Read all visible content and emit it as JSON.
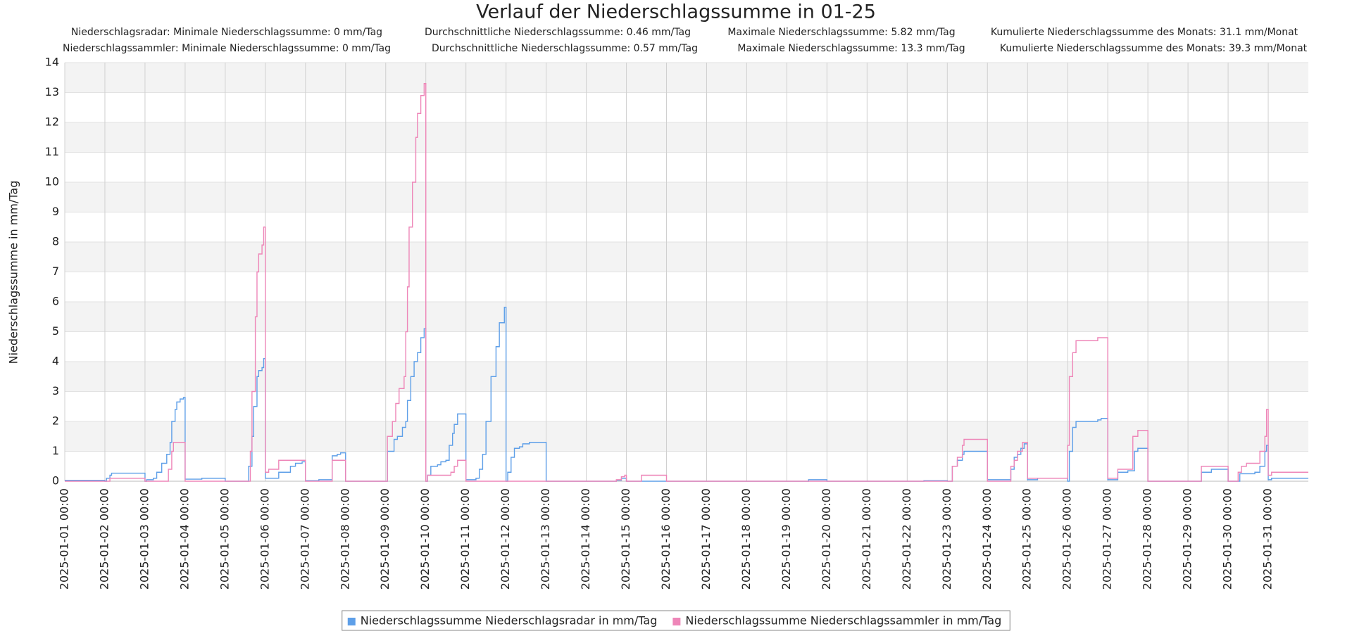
{
  "chart_data": {
    "type": "line",
    "title": "Verlauf der Niederschlagssumme in 01-25",
    "annotations": [
      "Niederschlagsradar: Minimale Niederschlagssumme: 0 mm/Tag",
      "Durchschnittliche Niederschlagssumme: 0.46 mm/Tag",
      "Maximale Niederschlagssumme: 5.82 mm/Tag",
      "Kumulierte Niederschlagssumme des Monats: 31.1 mm/Monat",
      "Niederschlagssammler: Minimale Niederschlagssumme: 0 mm/Tag",
      "Durchschnittliche Niederschlagssumme: 0.57 mm/Tag",
      "Maximale Niederschlagssumme: 13.3 mm/Tag",
      "Kumulierte Niederschlagssumme des Monats: 39.3 mm/Monat"
    ],
    "y_label": "Niederschlagssumme in mm/Tag",
    "ylim": [
      0,
      14
    ],
    "yticks": [
      0,
      1,
      2,
      3,
      4,
      5,
      6,
      7,
      8,
      9,
      10,
      11,
      12,
      13,
      14
    ],
    "xlim": [
      "2025-01-01 00:00",
      "2025-02-01 00:00"
    ],
    "xticks": [
      "2025-01-01 00:00",
      "2025-01-02 00:00",
      "2025-01-03 00:00",
      "2025-01-04 00:00",
      "2025-01-05 00:00",
      "2025-01-06 00:00",
      "2025-01-07 00:00",
      "2025-01-08 00:00",
      "2025-01-09 00:00",
      "2025-01-10 00:00",
      "2025-01-11 00:00",
      "2025-01-12 00:00",
      "2025-01-13 00:00",
      "2025-01-14 00:00",
      "2025-01-15 00:00",
      "2025-01-16 00:00",
      "2025-01-17 00:00",
      "2025-01-18 00:00",
      "2025-01-19 00:00",
      "2025-01-20 00:00",
      "2025-01-21 00:00",
      "2025-01-22 00:00",
      "2025-01-23 00:00",
      "2025-01-24 00:00",
      "2025-01-25 00:00",
      "2025-01-26 00:00",
      "2025-01-27 00:00",
      "2025-01-28 00:00",
      "2025-01-29 00:00",
      "2025-01-30 00:00",
      "2025-01-31 00:00"
    ],
    "grid": true,
    "band_color": "#f3f3f3",
    "step": "post",
    "legend": "bottom",
    "series": [
      {
        "name": "Niederschlagssumme Niederschlagsradar in mm/Tag",
        "color": "#5e9fe8",
        "x": [
          "2025-01-01 00:00",
          "2025-01-02 00:00",
          "2025-01-02 01:00",
          "2025-01-02 03:00",
          "2025-01-02 04:00",
          "2025-01-03 00:00",
          "2025-01-03 01:00",
          "2025-01-03 05:00",
          "2025-01-03 07:00",
          "2025-01-03 10:00",
          "2025-01-03 13:00",
          "2025-01-03 15:00",
          "2025-01-03 16:00",
          "2025-01-03 18:00",
          "2025-01-03 19:00",
          "2025-01-03 21:00",
          "2025-01-03 23:00",
          "2025-01-04 00:00",
          "2025-01-04 10:00",
          "2025-01-05 00:00",
          "2025-01-05 14:00",
          "2025-01-05 16:00",
          "2025-01-05 17:00",
          "2025-01-05 19:00",
          "2025-01-05 20:00",
          "2025-01-05 22:00",
          "2025-01-05 23:00",
          "2025-01-06 00:00",
          "2025-01-06 08:00",
          "2025-01-06 15:00",
          "2025-01-06 18:00",
          "2025-01-06 22:00",
          "2025-01-07 00:00",
          "2025-01-07 08:00",
          "2025-01-07 16:00",
          "2025-01-07 19:00",
          "2025-01-07 21:00",
          "2025-01-08 00:00",
          "2025-01-09 01:00",
          "2025-01-09 05:00",
          "2025-01-09 07:00",
          "2025-01-09 10:00",
          "2025-01-09 12:00",
          "2025-01-09 13:00",
          "2025-01-09 15:00",
          "2025-01-09 17:00",
          "2025-01-09 19:00",
          "2025-01-09 21:00",
          "2025-01-09 23:00",
          "2025-01-10 00:00",
          "2025-01-10 01:00",
          "2025-01-10 03:00",
          "2025-01-10 07:00",
          "2025-01-10 09:00",
          "2025-01-10 12:00",
          "2025-01-10 14:00",
          "2025-01-10 16:00",
          "2025-01-10 17:00",
          "2025-01-10 19:00",
          "2025-01-11 00:00",
          "2025-01-11 06:00",
          "2025-01-11 08:00",
          "2025-01-11 10:00",
          "2025-01-11 12:00",
          "2025-01-11 15:00",
          "2025-01-11 18:00",
          "2025-01-11 20:00",
          "2025-01-11 23:00",
          "2025-01-12 00:00",
          "2025-01-12 01:00",
          "2025-01-12 03:00",
          "2025-01-12 05:00",
          "2025-01-12 08:00",
          "2025-01-12 10:00",
          "2025-01-12 14:00",
          "2025-01-13 00:00",
          "2025-01-14 18:00",
          "2025-01-14 21:00",
          "2025-01-15 00:00",
          "2025-01-19 13:00",
          "2025-01-20 00:00",
          "2025-01-22 10:00",
          "2025-01-23 00:00",
          "2025-01-23 03:00",
          "2025-01-23 06:00",
          "2025-01-23 09:00",
          "2025-01-23 10:00",
          "2025-01-24 00:00",
          "2025-01-24 14:00",
          "2025-01-24 16:00",
          "2025-01-24 18:00",
          "2025-01-24 20:00",
          "2025-01-24 22:00",
          "2025-01-25 00:00",
          "2025-01-25 06:00",
          "2025-01-26 00:00",
          "2025-01-26 01:00",
          "2025-01-26 03:00",
          "2025-01-26 05:00",
          "2025-01-26 18:00",
          "2025-01-26 20:00",
          "2025-01-27 00:00",
          "2025-01-27 06:00",
          "2025-01-27 12:00",
          "2025-01-27 16:00",
          "2025-01-27 18:00",
          "2025-01-28 00:00",
          "2025-01-29 08:00",
          "2025-01-29 14:00",
          "2025-01-30 00:00",
          "2025-01-30 07:00",
          "2025-01-30 16:00",
          "2025-01-30 19:00",
          "2025-01-30 22:00",
          "2025-01-30 23:00",
          "2025-01-31 00:00",
          "2025-01-31 02:00"
        ],
        "values": [
          0.03,
          0,
          0.1,
          0.2,
          0.27,
          0,
          0.05,
          0.1,
          0.3,
          0.6,
          0.9,
          1.3,
          2,
          2.4,
          2.65,
          2.75,
          2.8,
          0.07,
          0.1,
          0,
          0.5,
          1.5,
          2.5,
          3.5,
          3.7,
          3.8,
          4.1,
          0.1,
          0.3,
          0.5,
          0.6,
          0.65,
          0.02,
          0.05,
          0.85,
          0.9,
          0.95,
          0,
          1,
          1.4,
          1.5,
          1.8,
          2,
          2.7,
          3.5,
          4,
          4.3,
          4.8,
          5.1,
          0,
          0.2,
          0.5,
          0.55,
          0.65,
          0.7,
          1.2,
          1.6,
          1.9,
          2.25,
          0.05,
          0.1,
          0.4,
          0.9,
          2,
          3.5,
          4.5,
          5.3,
          5.82,
          0,
          0.3,
          0.8,
          1.1,
          1.15,
          1.25,
          1.3,
          0,
          0.03,
          0.1,
          0,
          0.05,
          0,
          0.02,
          0,
          0.5,
          0.7,
          0.9,
          1,
          0.05,
          0.4,
          0.8,
          0.9,
          1.1,
          1.25,
          0.05,
          0.1,
          0,
          1,
          1.8,
          2,
          2.05,
          2.1,
          0.05,
          0.3,
          0.35,
          1,
          1.1,
          0,
          0.3,
          0.4,
          0,
          0.25,
          0.3,
          0.5,
          1,
          1.2,
          0.05,
          0.1
        ]
      },
      {
        "name": "Niederschlagssumme Niederschlagssammler in mm/Tag",
        "color": "#ee86b8",
        "x": [
          "2025-01-01 00:00",
          "2025-01-02 03:00",
          "2025-01-03 00:00",
          "2025-01-03 14:00",
          "2025-01-03 16:00",
          "2025-01-03 17:00",
          "2025-01-04 00:00",
          "2025-01-05 15:00",
          "2025-01-05 16:00",
          "2025-01-05 18:00",
          "2025-01-05 19:00",
          "2025-01-05 20:00",
          "2025-01-05 22:00",
          "2025-01-05 23:00",
          "2025-01-06 00:00",
          "2025-01-06 02:00",
          "2025-01-06 08:00",
          "2025-01-07 00:00",
          "2025-01-07 16:00",
          "2025-01-08 00:00",
          "2025-01-09 01:00",
          "2025-01-09 04:00",
          "2025-01-09 06:00",
          "2025-01-09 08:00",
          "2025-01-09 11:00",
          "2025-01-09 12:00",
          "2025-01-09 13:00",
          "2025-01-09 14:00",
          "2025-01-09 16:00",
          "2025-01-09 18:00",
          "2025-01-09 19:00",
          "2025-01-09 21:00",
          "2025-01-09 23:00",
          "2025-01-10 00:00",
          "2025-01-10 01:00",
          "2025-01-10 15:00",
          "2025-01-10 17:00",
          "2025-01-10 19:00",
          "2025-01-11 00:00",
          "2025-01-14 18:00",
          "2025-01-14 21:00",
          "2025-01-14 23:00",
          "2025-01-15 00:00",
          "2025-01-15 09:00",
          "2025-01-16 00:00",
          "2025-01-23 03:00",
          "2025-01-23 06:00",
          "2025-01-23 09:00",
          "2025-01-23 10:00",
          "2025-01-24 00:00",
          "2025-01-24 14:00",
          "2025-01-24 16:00",
          "2025-01-24 18:00",
          "2025-01-24 21:00",
          "2025-01-25 00:00",
          "2025-01-26 00:00",
          "2025-01-26 01:00",
          "2025-01-26 03:00",
          "2025-01-26 05:00",
          "2025-01-26 18:00",
          "2025-01-27 00:00",
          "2025-01-27 06:00",
          "2025-01-27 15:00",
          "2025-01-27 18:00",
          "2025-01-28 00:00",
          "2025-01-29 08:00",
          "2025-01-30 00:00",
          "2025-01-30 06:00",
          "2025-01-30 08:00",
          "2025-01-30 11:00",
          "2025-01-30 19:00",
          "2025-01-30 22:00",
          "2025-01-30 23:00",
          "2025-01-31 00:00",
          "2025-01-31 02:00"
        ],
        "values": [
          0,
          0.1,
          0,
          0.4,
          1,
          1.3,
          0,
          1,
          3,
          5.5,
          7,
          7.6,
          7.9,
          8.5,
          0.3,
          0.4,
          0.7,
          0,
          0.7,
          0,
          1.5,
          2,
          2.6,
          3.1,
          3.5,
          5,
          6.5,
          8.5,
          10,
          11.5,
          12.3,
          12.9,
          13.3,
          0,
          0.2,
          0.3,
          0.5,
          0.7,
          0,
          0.05,
          0.15,
          0.2,
          0,
          0.2,
          0,
          0.5,
          0.8,
          1.2,
          1.4,
          0,
          0.5,
          0.7,
          1,
          1.3,
          0.1,
          1.2,
          3.5,
          4.3,
          4.7,
          4.8,
          0.1,
          0.4,
          1.5,
          1.7,
          0,
          0.5,
          0,
          0.3,
          0.5,
          0.6,
          1,
          1.5,
          2.4,
          0.2,
          0.3
        ]
      }
    ]
  }
}
